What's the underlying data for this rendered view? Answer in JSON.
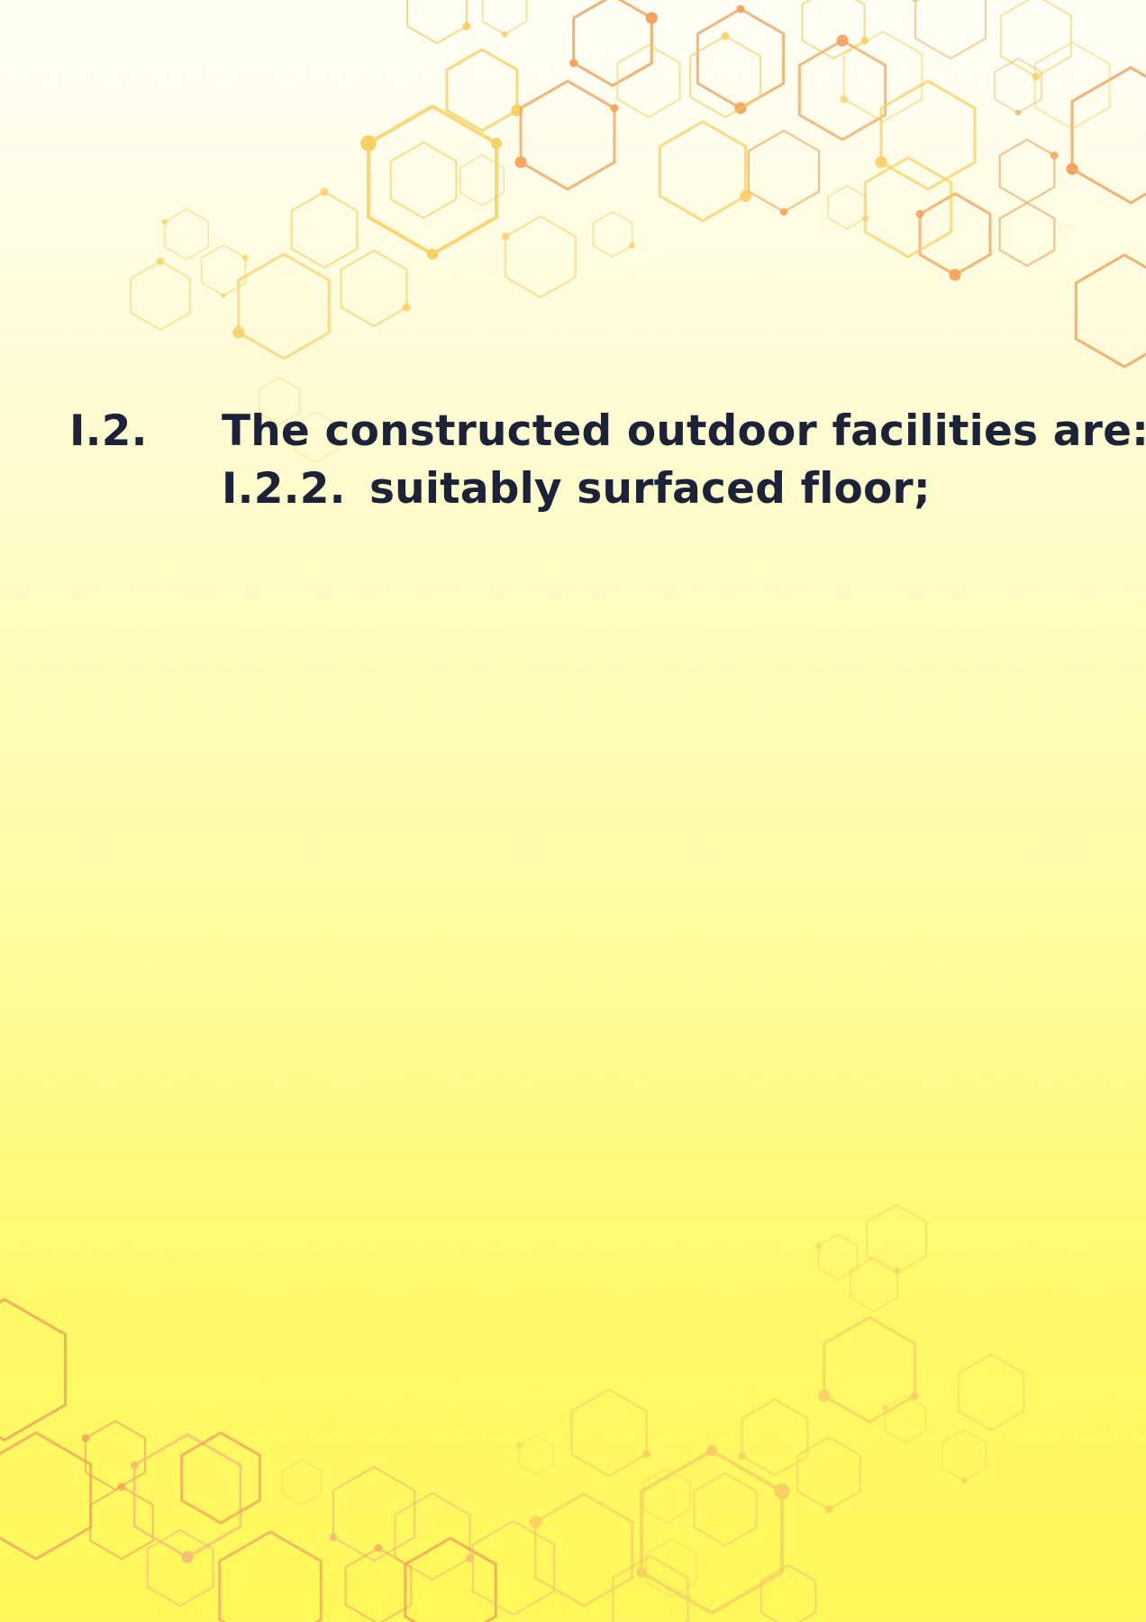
{
  "document": {
    "item": {
      "number": "I.2.",
      "text": "The constructed outdoor facilities are:"
    },
    "subitem": {
      "number": "I.2.2.",
      "text": "suitably surfaced floor;"
    }
  },
  "decoration": {
    "pattern": "hexagon-network",
    "colors": {
      "orange": "#f2a35d",
      "light_orange": "#f6b978",
      "yellow": "#f8cf62",
      "text": "#1c2238"
    }
  }
}
